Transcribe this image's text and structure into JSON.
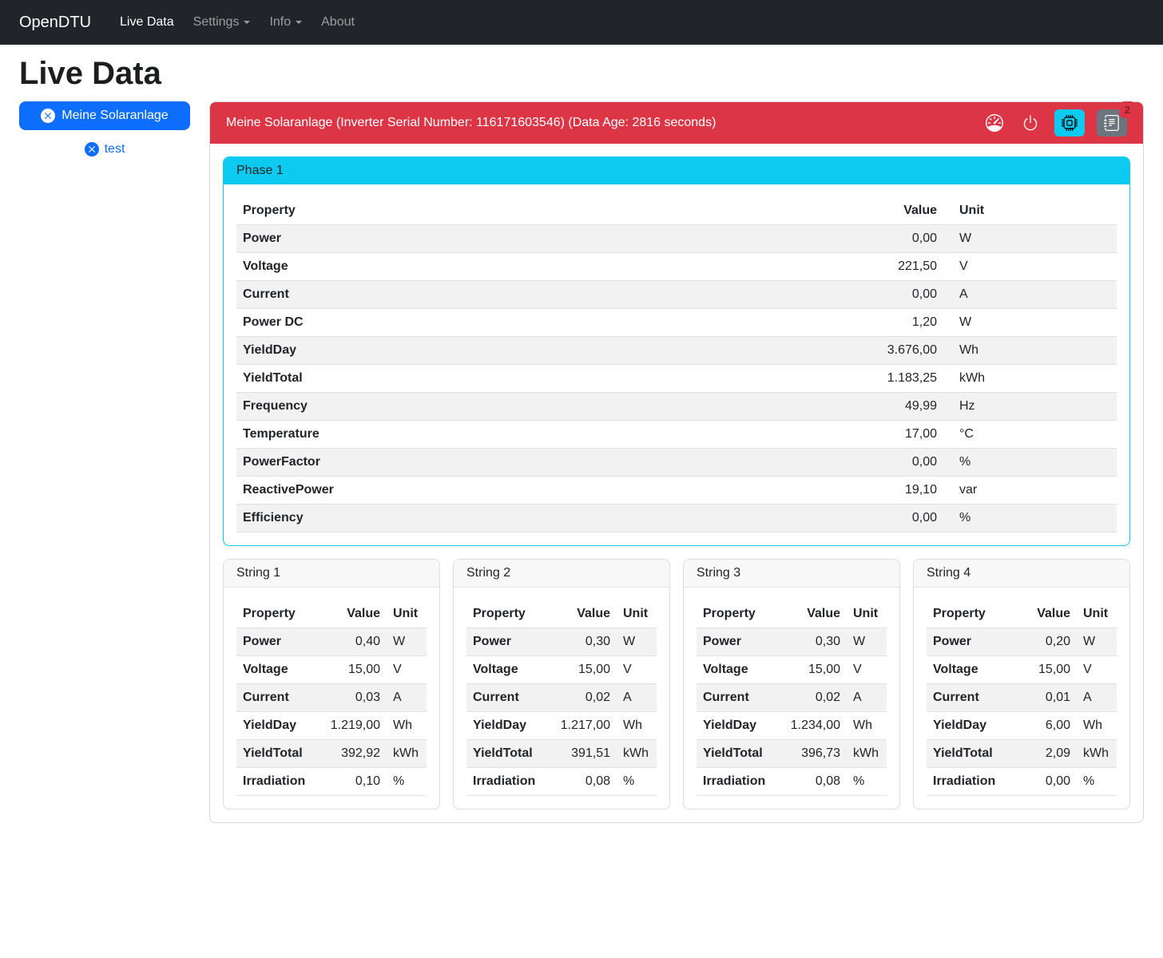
{
  "navbar": {
    "brand": "OpenDTU",
    "items": [
      {
        "label": "Live Data"
      },
      {
        "label": "Settings"
      },
      {
        "label": "Info"
      },
      {
        "label": "About"
      }
    ]
  },
  "page_title": "Live Data",
  "sidebar": {
    "inverters": [
      {
        "label": "Meine Solaranlage",
        "selected": true
      },
      {
        "label": "test",
        "selected": false
      }
    ]
  },
  "inverter_panel": {
    "title": "Meine Solaranlage (Inverter Serial Number: 116171603546) (Data Age: 2816 seconds)",
    "events_badge": "2",
    "icons": [
      "speedometer",
      "power",
      "cpu",
      "journal-text"
    ]
  },
  "table_columns": [
    "Property",
    "Value",
    "Unit"
  ],
  "phase": {
    "title": "Phase 1",
    "rows": [
      [
        "Power",
        "0,00",
        "W"
      ],
      [
        "Voltage",
        "221,50",
        "V"
      ],
      [
        "Current",
        "0,00",
        "A"
      ],
      [
        "Power DC",
        "1,20",
        "W"
      ],
      [
        "YieldDay",
        "3.676,00",
        "Wh"
      ],
      [
        "YieldTotal",
        "1.183,25",
        "kWh"
      ],
      [
        "Frequency",
        "49,99",
        "Hz"
      ],
      [
        "Temperature",
        "17,00",
        "°C"
      ],
      [
        "PowerFactor",
        "0,00",
        "%"
      ],
      [
        "ReactivePower",
        "19,10",
        "var"
      ],
      [
        "Efficiency",
        "0,00",
        "%"
      ]
    ]
  },
  "strings": [
    {
      "title": "String 1",
      "rows": [
        [
          "Power",
          "0,40",
          "W"
        ],
        [
          "Voltage",
          "15,00",
          "V"
        ],
        [
          "Current",
          "0,03",
          "A"
        ],
        [
          "YieldDay",
          "1.219,00",
          "Wh"
        ],
        [
          "YieldTotal",
          "392,92",
          "kWh"
        ],
        [
          "Irradiation",
          "0,10",
          "%"
        ]
      ]
    },
    {
      "title": "String 2",
      "rows": [
        [
          "Power",
          "0,30",
          "W"
        ],
        [
          "Voltage",
          "15,00",
          "V"
        ],
        [
          "Current",
          "0,02",
          "A"
        ],
        [
          "YieldDay",
          "1.217,00",
          "Wh"
        ],
        [
          "YieldTotal",
          "391,51",
          "kWh"
        ],
        [
          "Irradiation",
          "0,08",
          "%"
        ]
      ]
    },
    {
      "title": "String 3",
      "rows": [
        [
          "Power",
          "0,30",
          "W"
        ],
        [
          "Voltage",
          "15,00",
          "V"
        ],
        [
          "Current",
          "0,02",
          "A"
        ],
        [
          "YieldDay",
          "1.234,00",
          "Wh"
        ],
        [
          "YieldTotal",
          "396,73",
          "kWh"
        ],
        [
          "Irradiation",
          "0,08",
          "%"
        ]
      ]
    },
    {
      "title": "String 4",
      "rows": [
        [
          "Power",
          "0,20",
          "W"
        ],
        [
          "Voltage",
          "15,00",
          "V"
        ],
        [
          "Current",
          "0,01",
          "A"
        ],
        [
          "YieldDay",
          "6,00",
          "Wh"
        ],
        [
          "YieldTotal",
          "2,09",
          "kWh"
        ],
        [
          "Irradiation",
          "0,00",
          "%"
        ]
      ]
    }
  ],
  "colors": {
    "navbar_bg": "#212529",
    "primary": "#0d6efd",
    "danger": "#dc3545",
    "info": "#0dcaf0",
    "secondary": "#6c757d"
  }
}
